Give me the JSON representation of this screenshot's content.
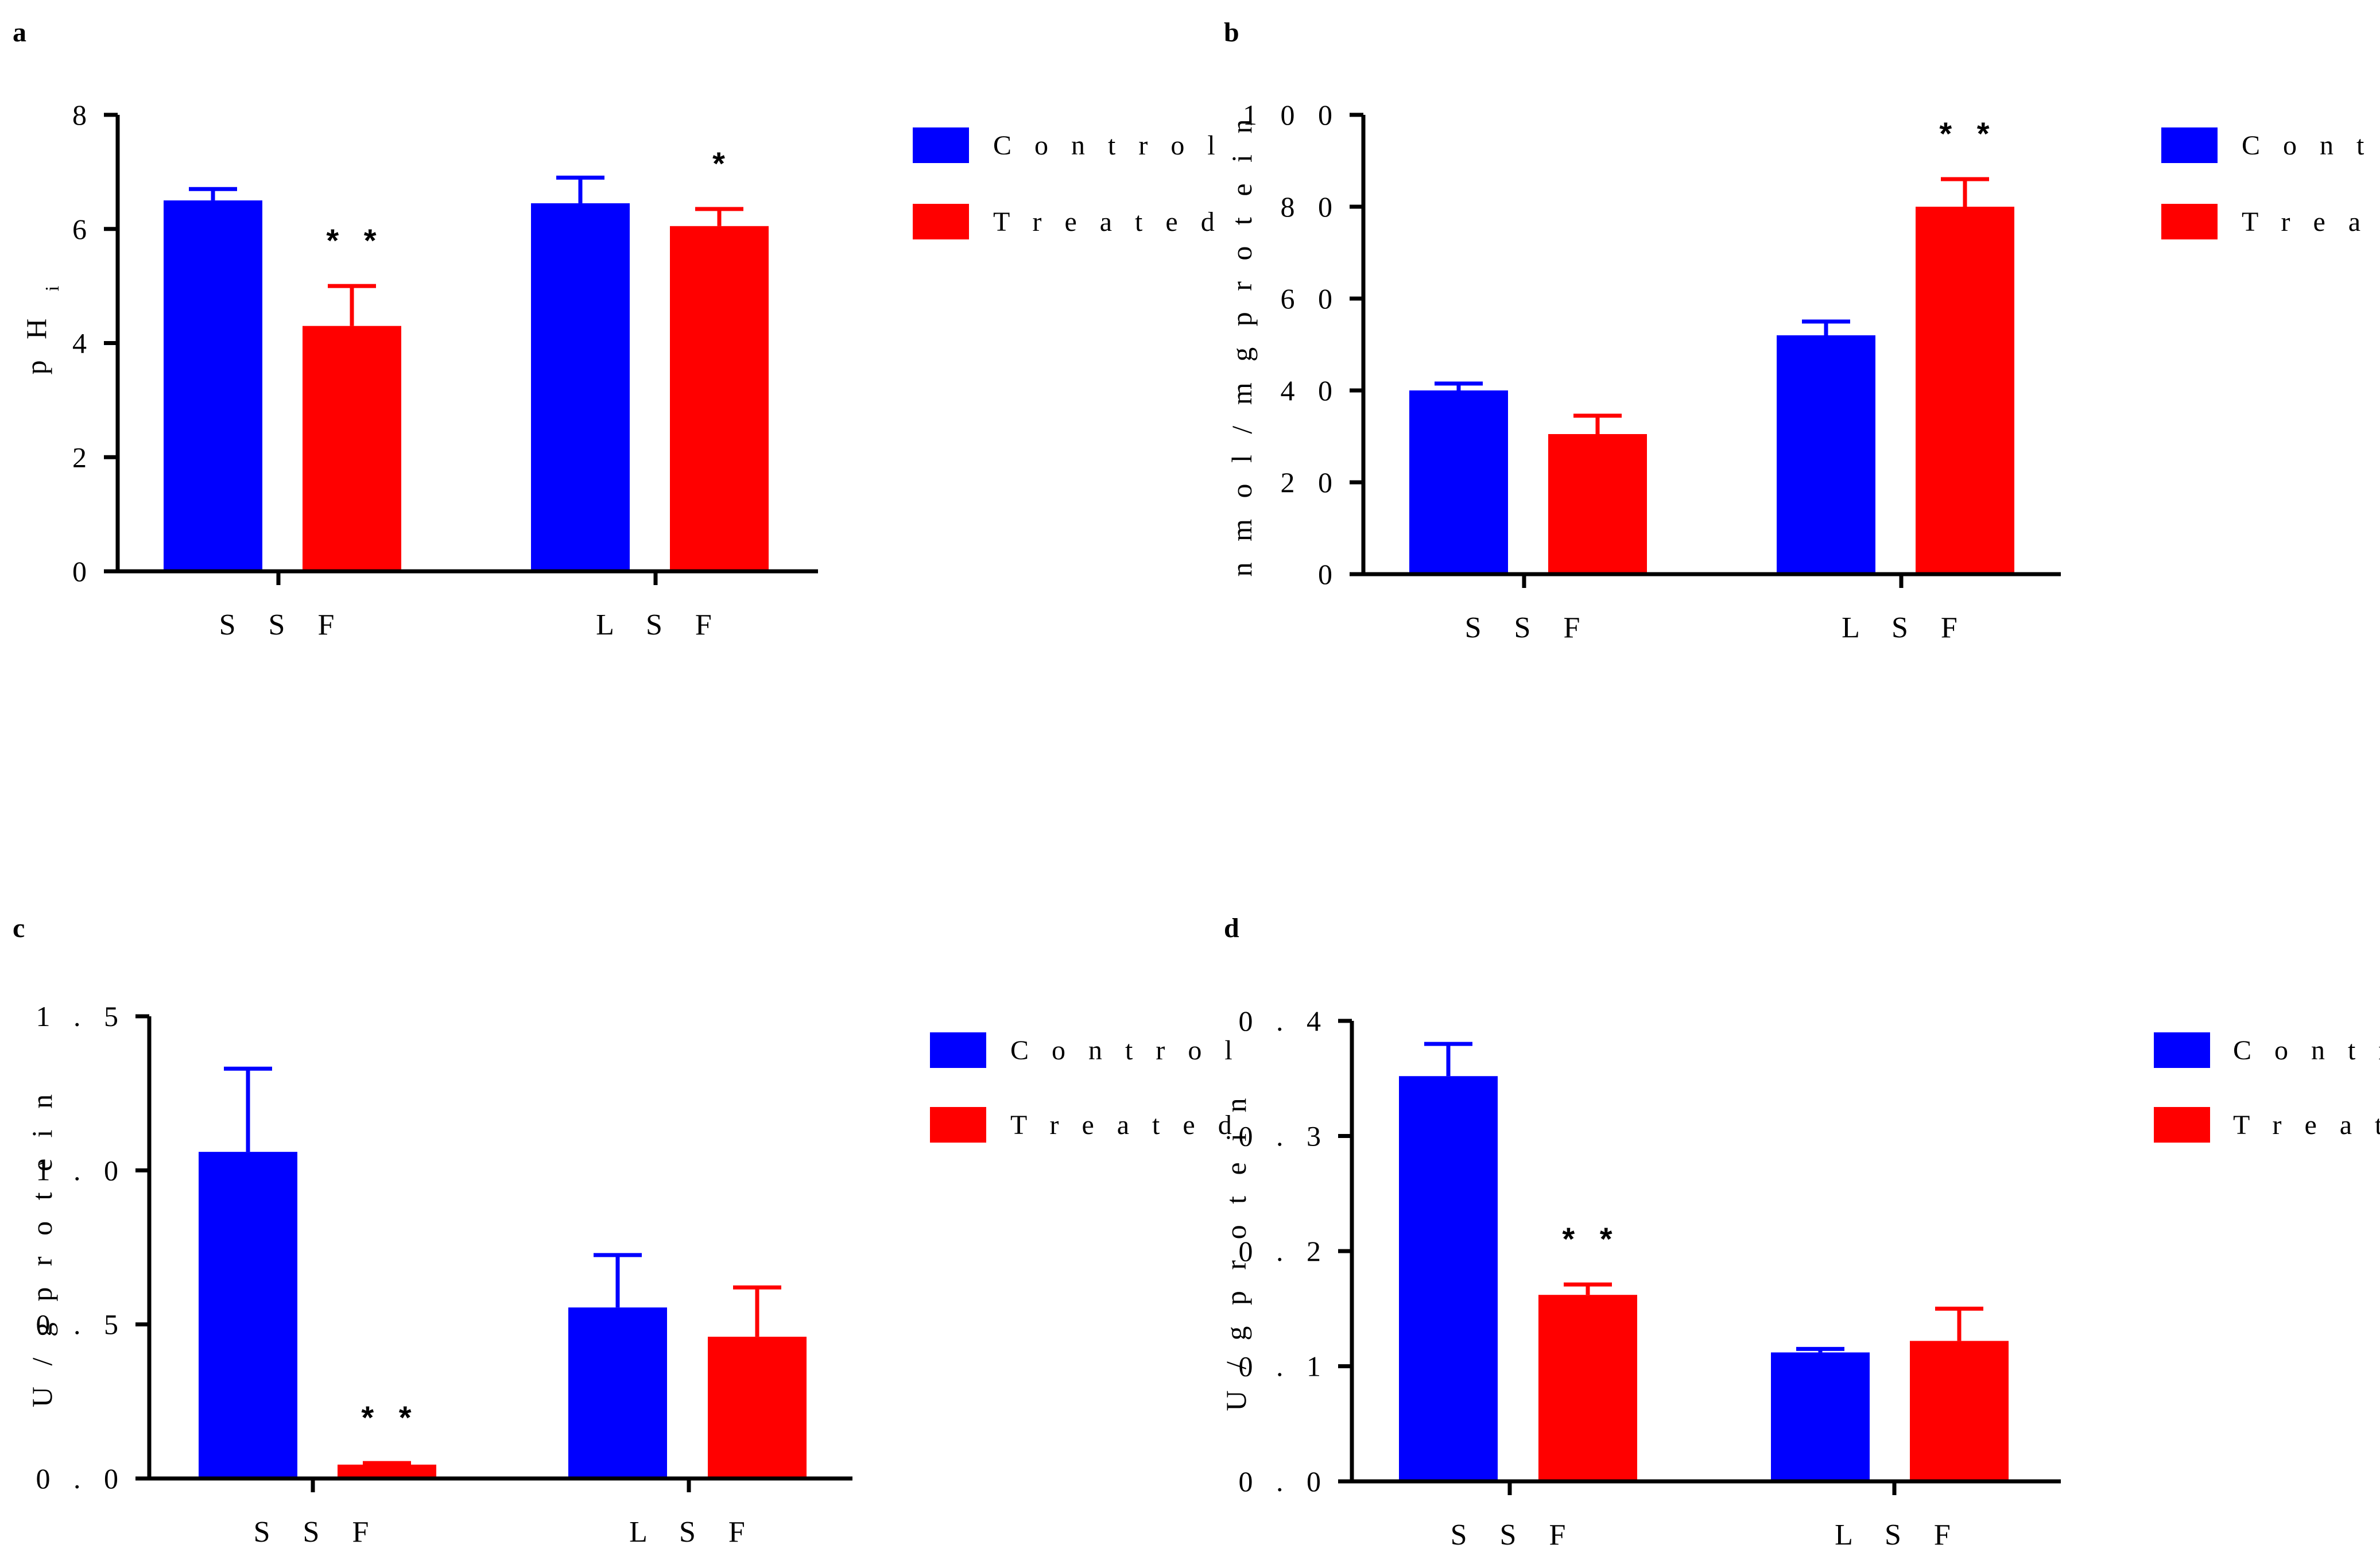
{
  "chart_data": [
    {
      "panel": "a",
      "type": "bar",
      "categories": [
        "S S F",
        "L S F"
      ],
      "series": [
        {
          "name": "C o n t r o l",
          "color": "#0000ff",
          "values": [
            6.5,
            6.45
          ],
          "errors": [
            0.2,
            0.45
          ]
        },
        {
          "name": "T r e a t e d",
          "color": "#ff0000",
          "values": [
            4.3,
            6.05
          ],
          "errors": [
            0.7,
            0.3
          ]
        }
      ],
      "ylabel": "p H",
      "ylabel_sub": "i",
      "ylim": [
        0,
        8
      ],
      "yticks": [
        "0",
        "2",
        "4",
        "6",
        "8"
      ],
      "annotations": [
        {
          "category": 0,
          "series": 1,
          "text": "* *"
        },
        {
          "category": 1,
          "series": 1,
          "text": "*"
        }
      ],
      "legend": "right"
    },
    {
      "panel": "b",
      "type": "bar",
      "categories": [
        "S S F",
        "L S F"
      ],
      "series": [
        {
          "name": "C o n t r o l",
          "color": "#0000ff",
          "values": [
            40,
            52
          ],
          "errors": [
            1.5,
            3
          ]
        },
        {
          "name": "T r e a t e d",
          "color": "#ff0000",
          "values": [
            30.5,
            80
          ],
          "errors": [
            4,
            6
          ]
        }
      ],
      "ylabel": "n m o l / m g  p r o t e i n",
      "ylim": [
        0,
        100
      ],
      "yticks": [
        "0",
        "2 0",
        "4 0",
        "6 0",
        "8 0",
        "1 0 0"
      ],
      "annotations": [
        {
          "category": 1,
          "series": 1,
          "text": "* *"
        }
      ],
      "legend": "right"
    },
    {
      "panel": "c",
      "type": "bar",
      "categories": [
        "S S F",
        "L S F"
      ],
      "series": [
        {
          "name": "C o n t r o l",
          "color": "#0000ff",
          "values": [
            1.06,
            0.555
          ],
          "errors": [
            0.27,
            0.17
          ]
        },
        {
          "name": "T r e a t e d",
          "color": "#ff0000",
          "values": [
            0.045,
            0.46
          ],
          "errors": [
            0.005,
            0.16
          ]
        }
      ],
      "ylabel": "U / g  p r o t e i n",
      "ylim": [
        0,
        1.5
      ],
      "yticks": [
        "0 . 0",
        "0 . 5",
        "1 . 0",
        "1 . 5"
      ],
      "annotations": [
        {
          "category": 0,
          "series": 1,
          "text": "* *"
        }
      ],
      "legend": "right"
    },
    {
      "panel": "d",
      "type": "bar",
      "categories": [
        "S S F",
        "L S F"
      ],
      "series": [
        {
          "name": "C o n t r o l",
          "color": "#0000ff",
          "values": [
            0.352,
            0.112
          ],
          "errors": [
            0.028,
            0.003
          ]
        },
        {
          "name": "T r e a t e d",
          "color": "#ff0000",
          "values": [
            0.162,
            0.122
          ],
          "errors": [
            0.009,
            0.028
          ]
        }
      ],
      "ylabel": "U / g  p r o t e i n",
      "ylim": [
        0,
        0.4
      ],
      "yticks": [
        "0 . 0",
        "0 . 1",
        "0 . 2",
        "0 . 3",
        "0 . 4"
      ],
      "annotations": [
        {
          "category": 0,
          "series": 1,
          "text": "* *"
        }
      ],
      "legend": "right"
    }
  ]
}
